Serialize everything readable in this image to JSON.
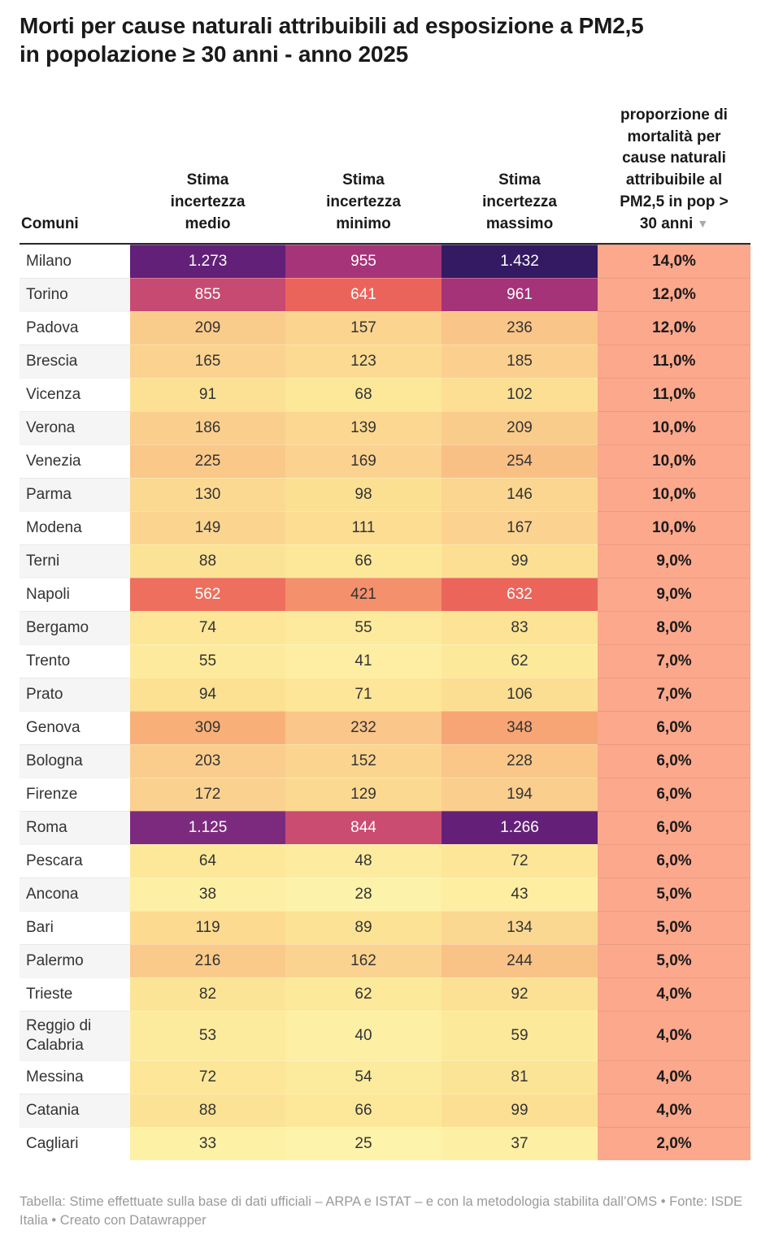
{
  "title": "Morti per cause naturali attribuibili ad esposizione a PM2,5\nin popolazione ≥ 30 anni - anno 2025",
  "table": {
    "header": {
      "comuni": "Comuni",
      "medio": "Stima\nincertezza\nmedio",
      "minimo": "Stima\nincertezza\nminimo",
      "massimo": "Stima\nincertezza\nmassimo",
      "pct": "proporzione di\nmortalità per\ncause naturali\nattribuibile al\nPM2,5 in pop >\n30 anni",
      "sort_indicator": "▼"
    }
  },
  "footer": "Tabella: Stime effettuate sulla base di dati ufficiali – ARPA e ISTAT – e con la metodologia stabilita dall’OMS • Fonte: ISDE Italia • Creato con Datawrapper",
  "colors": {
    "header_rule": "#2b2b2b",
    "pct_column_bg": "#fba88c",
    "zebra_row_bg": "#f5f5f5",
    "dark_text": "#333333",
    "light_text": "#ffffff",
    "footer_text": "#9a9a9a",
    "sort_arrow": "#a9a9a9"
  },
  "chart_data": {
    "type": "table",
    "subtype": "heatmap",
    "title": "Morti per cause naturali attribuibili ad esposizione a PM2,5 in popolazione ≥ 30 anni - anno 2025",
    "columns": [
      "Comuni",
      "Stima incertezza medio",
      "Stima incertezza minimo",
      "Stima incertezza massimo",
      "proporzione di mortalità per cause naturali attribuibile al PM2,5 in pop > 30 anni"
    ],
    "sorted_column": 4,
    "sort_direction": "desc",
    "rows": [
      [
        "Milano",
        1273,
        955,
        1432,
        14.0
      ],
      [
        "Torino",
        855,
        641,
        961,
        12.0
      ],
      [
        "Padova",
        209,
        157,
        236,
        12.0
      ],
      [
        "Brescia",
        165,
        123,
        185,
        11.0
      ],
      [
        "Vicenza",
        91,
        68,
        102,
        11.0
      ],
      [
        "Verona",
        186,
        139,
        209,
        10.0
      ],
      [
        "Venezia",
        225,
        169,
        254,
        10.0
      ],
      [
        "Parma",
        130,
        98,
        146,
        10.0
      ],
      [
        "Modena",
        149,
        111,
        167,
        10.0
      ],
      [
        "Terni",
        88,
        66,
        99,
        9.0
      ],
      [
        "Napoli",
        562,
        421,
        632,
        9.0
      ],
      [
        "Bergamo",
        74,
        55,
        83,
        8.0
      ],
      [
        "Trento",
        55,
        41,
        62,
        7.0
      ],
      [
        "Prato",
        94,
        71,
        106,
        7.0
      ],
      [
        "Genova",
        309,
        232,
        348,
        6.0
      ],
      [
        "Bologna",
        203,
        152,
        228,
        6.0
      ],
      [
        "Firenze",
        172,
        129,
        194,
        6.0
      ],
      [
        "Roma",
        1125,
        844,
        1266,
        6.0
      ],
      [
        "Pescara",
        64,
        48,
        72,
        6.0
      ],
      [
        "Ancona",
        38,
        28,
        43,
        5.0
      ],
      [
        "Bari",
        119,
        89,
        134,
        5.0
      ],
      [
        "Palermo",
        216,
        162,
        244,
        5.0
      ],
      [
        "Trieste",
        82,
        62,
        92,
        4.0
      ],
      [
        "Reggio di Calabria",
        53,
        40,
        59,
        4.0
      ],
      [
        "Messina",
        72,
        54,
        81,
        4.0
      ],
      [
        "Catania",
        88,
        66,
        99,
        4.0
      ],
      [
        "Cagliari",
        33,
        25,
        37,
        2.0
      ]
    ],
    "color_scale": {
      "description": "heatmap on the three Stima columns, pale yellow (low) to dark purple (high)",
      "stops": [
        [
          25,
          "#fdf3aa"
        ],
        [
          60,
          "#fde99a"
        ],
        [
          100,
          "#fcdf92"
        ],
        [
          160,
          "#fbd390"
        ],
        [
          210,
          "#facc8b"
        ],
        [
          255,
          "#f9c086"
        ],
        [
          310,
          "#f8b078"
        ],
        [
          420,
          "#f4906b"
        ],
        [
          565,
          "#ee6e5d"
        ],
        [
          645,
          "#ea635b"
        ],
        [
          850,
          "#c94b72"
        ],
        [
          960,
          "#a43378"
        ],
        [
          1130,
          "#7b2a7e"
        ],
        [
          1270,
          "#632079"
        ],
        [
          1432,
          "#341a63"
        ]
      ],
      "white_text_min": 500
    }
  }
}
